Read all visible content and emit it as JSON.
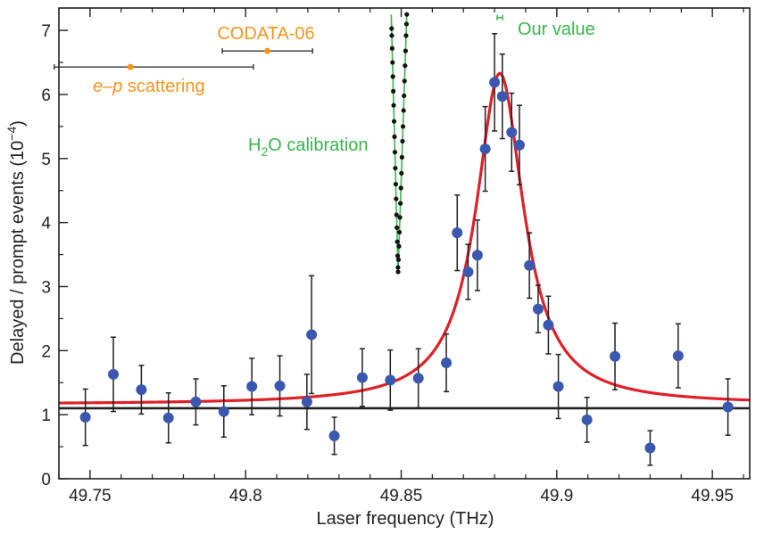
{
  "chart_data": {
    "type": "scatter",
    "xlabel": "Laser frequency (THz)",
    "ylabel_main": "Delayed / prompt events (10",
    "ylabel_exp": "−4",
    "ylabel_close": ")",
    "xlim": [
      49.74,
      49.962
    ],
    "ylim": [
      0,
      7.35
    ],
    "xticks": [
      49.75,
      49.8,
      49.85,
      49.9,
      49.95
    ],
    "xtick_labels": [
      "49.75",
      "49.8",
      "49.85",
      "49.9",
      "49.95"
    ],
    "yticks": [
      0,
      1,
      2,
      3,
      4,
      5,
      6,
      7
    ],
    "ytick_labels": [
      "0",
      "1",
      "2",
      "3",
      "4",
      "5",
      "6",
      "7"
    ],
    "baseline": 1.1,
    "colors": {
      "points": "#3a58b0",
      "fit": "#e02028",
      "baseline": "#231f20",
      "errorbar": "#231f20",
      "orange": "#f7941d",
      "green": "#39b54a",
      "h2o_points": "#111111"
    },
    "series": [
      {
        "name": "measurements",
        "points": [
          {
            "x": 49.7485,
            "y": 0.96,
            "err": 0.44
          },
          {
            "x": 49.7575,
            "y": 1.63,
            "err": 0.58
          },
          {
            "x": 49.7665,
            "y": 1.39,
            "err": 0.38
          },
          {
            "x": 49.7752,
            "y": 0.95,
            "err": 0.39
          },
          {
            "x": 49.784,
            "y": 1.2,
            "err": 0.36
          },
          {
            "x": 49.793,
            "y": 1.05,
            "err": 0.4
          },
          {
            "x": 49.802,
            "y": 1.44,
            "err": 0.44
          },
          {
            "x": 49.811,
            "y": 1.45,
            "err": 0.47
          },
          {
            "x": 49.8197,
            "y": 1.2,
            "err": 0.43
          },
          {
            "x": 49.8212,
            "y": 2.25,
            "err": 0.92
          },
          {
            "x": 49.8285,
            "y": 0.67,
            "err": 0.29
          },
          {
            "x": 49.8375,
            "y": 1.58,
            "err": 0.45
          },
          {
            "x": 49.8465,
            "y": 1.54,
            "err": 0.47
          },
          {
            "x": 49.8555,
            "y": 1.57,
            "err": 0.46
          },
          {
            "x": 49.8645,
            "y": 1.81,
            "err": 0.45
          },
          {
            "x": 49.868,
            "y": 3.84,
            "err": 0.59
          },
          {
            "x": 49.8715,
            "y": 3.23,
            "err": 0.43
          },
          {
            "x": 49.8745,
            "y": 3.49,
            "err": 0.55
          },
          {
            "x": 49.877,
            "y": 5.15,
            "err": 0.66
          },
          {
            "x": 49.88,
            "y": 6.19,
            "err": 0.76
          },
          {
            "x": 49.8825,
            "y": 5.97,
            "err": 0.66
          },
          {
            "x": 49.8855,
            "y": 5.41,
            "err": 0.61
          },
          {
            "x": 49.888,
            "y": 5.21,
            "err": 0.62
          },
          {
            "x": 49.8912,
            "y": 3.33,
            "err": 0.51
          },
          {
            "x": 49.894,
            "y": 2.65,
            "err": 0.37
          },
          {
            "x": 49.8973,
            "y": 2.4,
            "err": 0.45
          },
          {
            "x": 49.9005,
            "y": 1.44,
            "err": 0.5
          },
          {
            "x": 49.9097,
            "y": 0.92,
            "err": 0.35
          },
          {
            "x": 49.9187,
            "y": 1.91,
            "err": 0.52
          },
          {
            "x": 49.93,
            "y": 0.48,
            "err": 0.27
          },
          {
            "x": 49.939,
            "y": 1.92,
            "err": 0.5
          },
          {
            "x": 49.955,
            "y": 1.12,
            "err": 0.44
          }
        ]
      },
      {
        "name": "fit",
        "model": "lorentzian",
        "offset": 1.16,
        "amplitude": 5.17,
        "center": 49.8817,
        "fwhm": 0.0186
      }
    ],
    "annotations": {
      "codata": {
        "label": "CODATA-06",
        "x": 49.807,
        "y": 6.68,
        "xmin": 49.7925,
        "xmax": 49.8215
      },
      "ep": {
        "label_italic": "e–p",
        "label_rest": " scattering",
        "x": 49.763,
        "y": 6.43,
        "xmin": 49.7385,
        "xmax": 49.8025
      },
      "our_value": {
        "label": "Our value",
        "x": 49.8817,
        "y": 7.2
      },
      "h2o": {
        "label_pre": "H",
        "label_sub": "2",
        "label_post": "O calibration",
        "y_min": 3.23,
        "y_max": 7.25,
        "left_branch_top_x": 49.8468,
        "right_branch_top_x": 49.8518,
        "bottom_x": 49.849,
        "left_values": [
          3.3,
          3.48,
          3.7,
          3.92,
          4.12,
          4.37,
          4.6,
          4.85,
          5.1,
          5.34,
          5.58,
          5.83,
          6.05,
          6.28,
          6.5,
          6.72,
          6.92,
          7.03
        ],
        "right_values": [
          3.23,
          3.42,
          3.63,
          3.85,
          4.08,
          4.3,
          4.54,
          4.77,
          5.02,
          5.27,
          5.5,
          5.75,
          5.98,
          6.21,
          6.45,
          6.68,
          6.92,
          7.1,
          7.25
        ]
      }
    }
  }
}
